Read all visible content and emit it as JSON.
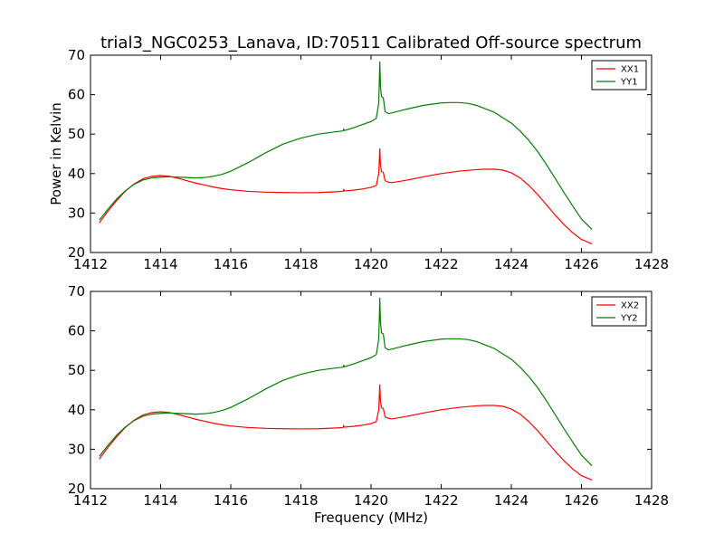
{
  "title": "trial3_NGC0253_Lanava, ID:70511 Calibrated Off-source spectrum",
  "chart_data": [
    {
      "type": "line",
      "xlabel": "",
      "ylabel": "Power in Kelvin",
      "xlim": [
        1412,
        1428
      ],
      "ylim": [
        20,
        70
      ],
      "xticks": [
        "1412",
        "1414",
        "1416",
        "1418",
        "1420",
        "1422",
        "1424",
        "1426",
        "1428"
      ],
      "yticks": [
        "20",
        "30",
        "40",
        "50",
        "60",
        "70"
      ],
      "legend_position": "top-right",
      "series": [
        {
          "name": "XX1",
          "color": "#ff0000",
          "x": [
            1412.25,
            1412.5,
            1412.75,
            1413.0,
            1413.25,
            1413.5,
            1413.75,
            1414.0,
            1414.25,
            1414.5,
            1414.75,
            1415.0,
            1415.25,
            1415.5,
            1415.75,
            1416.0,
            1416.5,
            1417.0,
            1417.5,
            1418.0,
            1418.5,
            1419.0,
            1419.2,
            1419.22,
            1419.24,
            1419.5,
            1419.75,
            1420.0,
            1420.15,
            1420.22,
            1420.25,
            1420.27,
            1420.3,
            1420.35,
            1420.4,
            1420.5,
            1420.6,
            1421.0,
            1421.5,
            1422.0,
            1422.5,
            1423.0,
            1423.25,
            1423.5,
            1423.75,
            1424.0,
            1424.25,
            1424.5,
            1424.75,
            1425.0,
            1425.25,
            1425.5,
            1425.75,
            1426.0,
            1426.3
          ],
          "values": [
            27.5,
            30.5,
            33.2,
            35.6,
            37.4,
            38.7,
            39.3,
            39.5,
            39.3,
            38.8,
            38.2,
            37.6,
            37.1,
            36.6,
            36.2,
            35.9,
            35.5,
            35.3,
            35.2,
            35.15,
            35.2,
            35.4,
            35.5,
            36.0,
            35.6,
            35.8,
            36.1,
            36.5,
            37.0,
            40.0,
            46.3,
            42.0,
            40.5,
            40.3,
            38.2,
            37.8,
            37.7,
            38.3,
            39.2,
            40.0,
            40.6,
            41.0,
            41.1,
            41.1,
            40.9,
            40.2,
            38.9,
            37.0,
            34.7,
            32.1,
            29.5,
            27.1,
            25.0,
            23.3,
            22.2
          ]
        },
        {
          "name": "YY1",
          "color": "#008000",
          "x": [
            1412.25,
            1412.5,
            1412.75,
            1413.0,
            1413.25,
            1413.5,
            1413.75,
            1414.0,
            1414.25,
            1414.5,
            1414.75,
            1415.0,
            1415.25,
            1415.5,
            1415.75,
            1416.0,
            1416.5,
            1417.0,
            1417.5,
            1418.0,
            1418.5,
            1419.0,
            1419.2,
            1419.22,
            1419.24,
            1419.5,
            1419.75,
            1420.0,
            1420.15,
            1420.22,
            1420.25,
            1420.27,
            1420.3,
            1420.35,
            1420.4,
            1420.5,
            1420.6,
            1421.0,
            1421.5,
            1422.0,
            1422.25,
            1422.5,
            1422.75,
            1423.0,
            1423.5,
            1424.0,
            1424.25,
            1424.5,
            1424.75,
            1425.0,
            1425.25,
            1425.5,
            1425.75,
            1426.0,
            1426.3
          ],
          "values": [
            28.2,
            31.0,
            33.6,
            35.7,
            37.3,
            38.4,
            38.9,
            39.1,
            39.2,
            39.1,
            39.0,
            38.9,
            39.0,
            39.3,
            39.8,
            40.6,
            42.8,
            45.3,
            47.5,
            49.0,
            50.0,
            50.6,
            50.8,
            51.3,
            50.9,
            51.6,
            52.4,
            53.2,
            54.0,
            58.0,
            68.3,
            62.0,
            59.5,
            59.2,
            55.7,
            55.2,
            55.4,
            56.3,
            57.3,
            57.9,
            58.0,
            58.0,
            57.8,
            57.3,
            55.6,
            52.8,
            50.8,
            48.4,
            45.6,
            42.3,
            38.8,
            35.2,
            31.8,
            28.5,
            25.8
          ]
        }
      ]
    },
    {
      "type": "line",
      "xlabel": "Frequency (MHz)",
      "ylabel": "",
      "xlim": [
        1412,
        1428
      ],
      "ylim": [
        20,
        70
      ],
      "xticks": [
        "1412",
        "1414",
        "1416",
        "1418",
        "1420",
        "1422",
        "1424",
        "1426",
        "1428"
      ],
      "yticks": [
        "20",
        "30",
        "40",
        "50",
        "60",
        "70"
      ],
      "legend_position": "top-right",
      "series": [
        {
          "name": "XX2",
          "color": "#ff0000",
          "x": [
            1412.25,
            1412.5,
            1412.75,
            1413.0,
            1413.25,
            1413.5,
            1413.75,
            1414.0,
            1414.25,
            1414.5,
            1414.75,
            1415.0,
            1415.25,
            1415.5,
            1415.75,
            1416.0,
            1416.5,
            1417.0,
            1417.5,
            1418.0,
            1418.5,
            1419.0,
            1419.2,
            1419.22,
            1419.24,
            1419.5,
            1419.75,
            1420.0,
            1420.15,
            1420.22,
            1420.25,
            1420.27,
            1420.3,
            1420.35,
            1420.4,
            1420.5,
            1420.6,
            1421.0,
            1421.5,
            1422.0,
            1422.5,
            1423.0,
            1423.25,
            1423.5,
            1423.75,
            1424.0,
            1424.25,
            1424.5,
            1424.75,
            1425.0,
            1425.25,
            1425.5,
            1425.75,
            1426.0,
            1426.3
          ],
          "values": [
            27.5,
            30.5,
            33.2,
            35.6,
            37.4,
            38.7,
            39.3,
            39.5,
            39.3,
            38.8,
            38.2,
            37.6,
            37.1,
            36.6,
            36.2,
            35.9,
            35.5,
            35.3,
            35.2,
            35.15,
            35.2,
            35.4,
            35.5,
            36.0,
            35.6,
            35.8,
            36.1,
            36.5,
            37.0,
            40.0,
            46.3,
            42.0,
            40.5,
            40.3,
            38.2,
            37.8,
            37.7,
            38.3,
            39.2,
            40.0,
            40.6,
            41.0,
            41.1,
            41.1,
            40.9,
            40.2,
            38.9,
            37.0,
            34.7,
            32.1,
            29.5,
            27.1,
            25.0,
            23.3,
            22.2
          ]
        },
        {
          "name": "YY2",
          "color": "#008000",
          "x": [
            1412.25,
            1412.5,
            1412.75,
            1413.0,
            1413.25,
            1413.5,
            1413.75,
            1414.0,
            1414.25,
            1414.5,
            1414.75,
            1415.0,
            1415.25,
            1415.5,
            1415.75,
            1416.0,
            1416.5,
            1417.0,
            1417.5,
            1418.0,
            1418.5,
            1419.0,
            1419.2,
            1419.22,
            1419.24,
            1419.5,
            1419.75,
            1420.0,
            1420.15,
            1420.22,
            1420.25,
            1420.27,
            1420.3,
            1420.35,
            1420.4,
            1420.5,
            1420.6,
            1421.0,
            1421.5,
            1422.0,
            1422.25,
            1422.5,
            1422.75,
            1423.0,
            1423.5,
            1424.0,
            1424.25,
            1424.5,
            1424.75,
            1425.0,
            1425.25,
            1425.5,
            1425.75,
            1426.0,
            1426.3
          ],
          "values": [
            28.2,
            31.0,
            33.6,
            35.7,
            37.3,
            38.4,
            38.9,
            39.1,
            39.2,
            39.1,
            39.0,
            38.9,
            39.0,
            39.3,
            39.8,
            40.6,
            42.8,
            45.3,
            47.5,
            49.0,
            50.0,
            50.6,
            50.8,
            51.3,
            50.9,
            51.6,
            52.4,
            53.2,
            54.0,
            58.0,
            68.3,
            62.0,
            59.5,
            59.2,
            55.7,
            55.2,
            55.4,
            56.3,
            57.3,
            57.9,
            58.0,
            58.0,
            57.8,
            57.3,
            55.6,
            52.8,
            50.8,
            48.4,
            45.6,
            42.3,
            38.8,
            35.2,
            31.8,
            28.5,
            25.8
          ]
        }
      ]
    }
  ]
}
